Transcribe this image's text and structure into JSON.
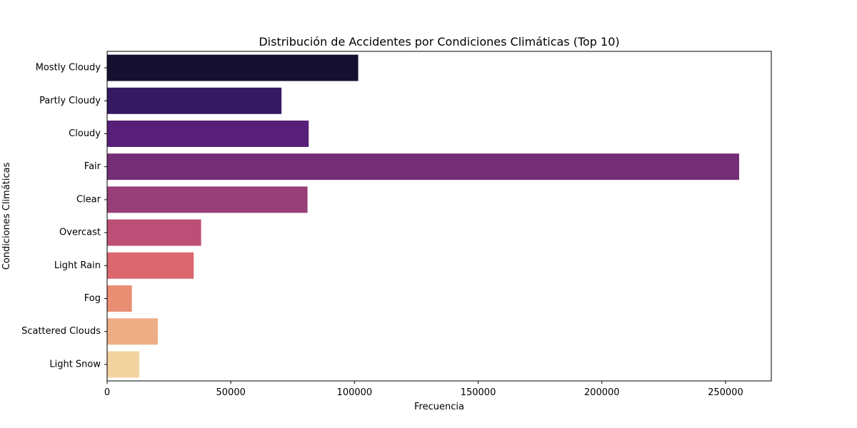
{
  "chart_data": {
    "type": "bar",
    "orientation": "horizontal",
    "title": "Distribución de Accidentes por Condiciones Climáticas (Top 10)",
    "xlabel": "Frecuencia",
    "ylabel": "Condiciones Climáticas",
    "categories": [
      "Mostly Cloudy",
      "Partly Cloudy",
      "Cloudy",
      "Fair",
      "Clear",
      "Overcast",
      "Light Rain",
      "Fog",
      "Scattered Clouds",
      "Light Snow"
    ],
    "values": [
      101500,
      70500,
      81500,
      255500,
      81000,
      38000,
      35000,
      10000,
      20500,
      13000
    ],
    "colors": [
      "#150f30",
      "#351a61",
      "#571f77",
      "#742e75",
      "#973f77",
      "#bb4f76",
      "#db676f",
      "#e98d73",
      "#eeae85",
      "#f3d3a0"
    ],
    "xlim": [
      0,
      268500
    ],
    "xticks": [
      0,
      50000,
      100000,
      150000,
      200000,
      250000
    ],
    "xtick_labels": [
      "0",
      "50000",
      "100000",
      "150000",
      "200000",
      "250000"
    ],
    "grid": false,
    "legend": "none"
  }
}
